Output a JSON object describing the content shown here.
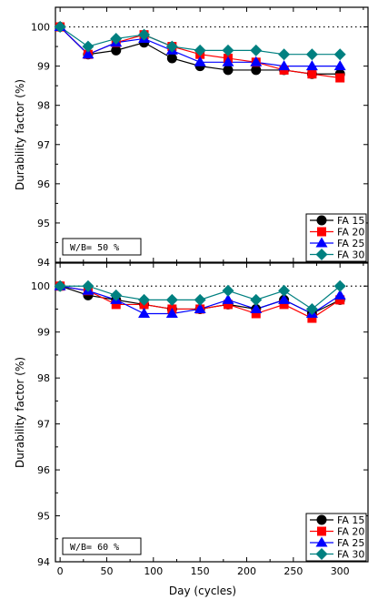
{
  "chart_data": [
    {
      "type": "line",
      "ylabel": "Durability factor (%)",
      "xlabel": "",
      "xlim": [
        -5,
        330
      ],
      "ylim": [
        94,
        100.5
      ],
      "xticks": [],
      "yticks": [
        94,
        95,
        96,
        97,
        98,
        99,
        100
      ],
      "reference_line": 100,
      "annotation": "W/B= 50 %",
      "legend_position": "bottom-right",
      "x": [
        0,
        30,
        60,
        90,
        120,
        150,
        180,
        210,
        240,
        270,
        300
      ],
      "series": [
        {
          "name": "FA 15",
          "marker": "circle",
          "color": "#000000",
          "values": [
            100.0,
            99.3,
            99.4,
            99.6,
            99.2,
            99.0,
            98.9,
            98.9,
            98.9,
            98.8,
            98.8
          ]
        },
        {
          "name": "FA 20",
          "marker": "square",
          "color": "#ff0000",
          "values": [
            100.0,
            99.3,
            99.6,
            99.8,
            99.5,
            99.3,
            99.2,
            99.1,
            98.9,
            98.8,
            98.7
          ]
        },
        {
          "name": "FA 25",
          "marker": "triangle",
          "color": "#0000ff",
          "values": [
            100.0,
            99.3,
            99.6,
            99.7,
            99.4,
            99.1,
            99.1,
            99.1,
            99.0,
            99.0,
            99.0
          ]
        },
        {
          "name": "FA 30",
          "marker": "diamond",
          "color": "#008080",
          "values": [
            100.0,
            99.5,
            99.7,
            99.8,
            99.5,
            99.4,
            99.4,
            99.4,
            99.3,
            99.3,
            99.3
          ]
        }
      ]
    },
    {
      "type": "line",
      "ylabel": "Durability factor (%)",
      "xlabel": "Day (cycles)",
      "xlim": [
        -5,
        330
      ],
      "ylim": [
        94,
        100.5
      ],
      "xticks": [
        0,
        50,
        100,
        150,
        200,
        250,
        300
      ],
      "yticks": [
        94,
        95,
        96,
        97,
        98,
        99,
        100
      ],
      "reference_line": 100,
      "annotation": "W/B= 60 %",
      "legend_position": "bottom-right",
      "x": [
        0,
        30,
        60,
        90,
        120,
        150,
        180,
        210,
        240,
        270,
        300
      ],
      "series": [
        {
          "name": "FA 15",
          "marker": "circle",
          "color": "#000000",
          "values": [
            100.0,
            99.8,
            99.7,
            99.6,
            99.5,
            99.5,
            99.6,
            99.5,
            99.7,
            99.4,
            99.7
          ]
        },
        {
          "name": "FA 20",
          "marker": "square",
          "color": "#ff0000",
          "values": [
            100.0,
            99.9,
            99.6,
            99.6,
            99.5,
            99.5,
            99.6,
            99.4,
            99.6,
            99.3,
            99.7
          ]
        },
        {
          "name": "FA 25",
          "marker": "triangle",
          "color": "#0000ff",
          "values": [
            100.0,
            99.9,
            99.7,
            99.4,
            99.4,
            99.5,
            99.7,
            99.5,
            99.7,
            99.4,
            99.8
          ]
        },
        {
          "name": "FA 30",
          "marker": "diamond",
          "color": "#008080",
          "values": [
            100.0,
            100.0,
            99.8,
            99.7,
            99.7,
            99.7,
            99.9,
            99.7,
            99.9,
            99.5,
            100.0
          ]
        }
      ]
    }
  ]
}
